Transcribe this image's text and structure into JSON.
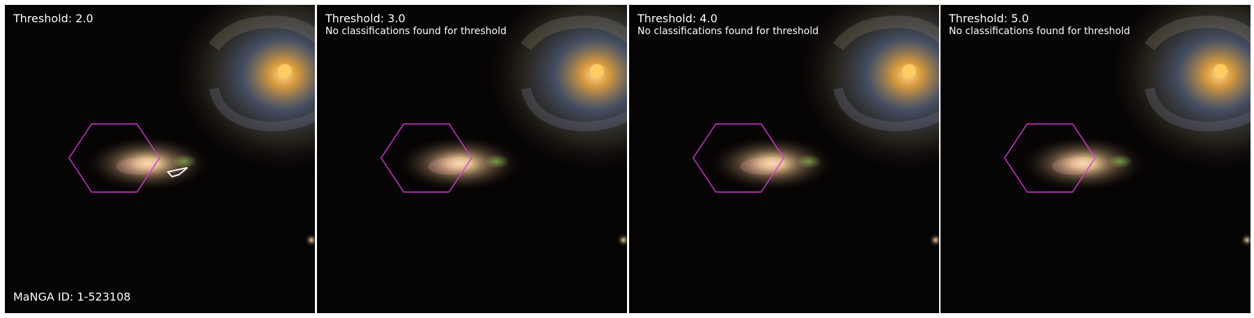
{
  "panels": [
    {
      "title": "Threshold: 2.0",
      "note": "",
      "footer": "MaNGA ID: 1-523108",
      "has_contour": true
    },
    {
      "title": "Threshold: 3.0",
      "note": "No classifications found for threshold",
      "footer": "",
      "has_contour": false
    },
    {
      "title": "Threshold: 4.0",
      "note": "No classifications found for threshold",
      "footer": "",
      "has_contour": false
    },
    {
      "title": "Threshold: 5.0",
      "note": "No classifications found for threshold",
      "footer": "",
      "has_contour": false
    }
  ],
  "colors": {
    "hexagon": "#d63ad6",
    "contour": "#ffffff",
    "text": "#ffffff",
    "sky": "#050303"
  }
}
